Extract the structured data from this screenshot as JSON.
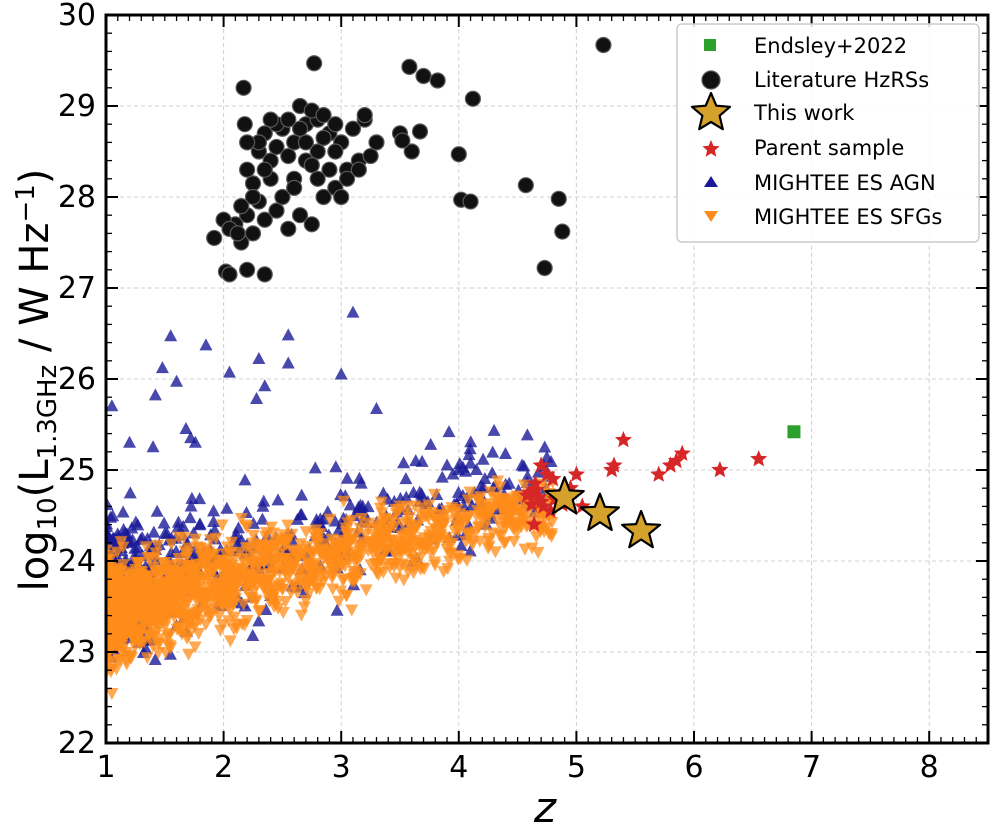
{
  "chart_data": {
    "type": "scatter",
    "xlabel": "z",
    "ylabel": {
      "prefix": "log",
      "base": "10",
      "open": "(L",
      "sub": "1.3GHz",
      "mid": " / W Hz",
      "sup": "−1",
      "close": ")"
    },
    "xlim": [
      1,
      8.5
    ],
    "ylim": [
      22,
      30
    ],
    "xticks": [
      "1",
      "2",
      "3",
      "4",
      "5",
      "6",
      "7",
      "8"
    ],
    "yticks": [
      "22",
      "23",
      "24",
      "25",
      "26",
      "27",
      "28",
      "29",
      "30"
    ],
    "grid": true,
    "legend_position": "top-right",
    "colors": {
      "endsley": "#2ca02c",
      "literature": "#111111",
      "this_work": "#d4a12a",
      "parent": "#d62728",
      "agn": "#1a1a99",
      "sfg": "#ff8c1a"
    },
    "series": [
      {
        "key": "endsley",
        "name": "Endsley+2022",
        "marker": "square",
        "points": [
          [
            6.85,
            25.42
          ]
        ]
      },
      {
        "key": "literature",
        "name": "Literature HzRSs",
        "marker": "circle",
        "points": [
          [
            2.17,
            29.2
          ],
          [
            2.77,
            29.47
          ],
          [
            3.58,
            29.43
          ],
          [
            3.7,
            29.33
          ],
          [
            3.82,
            29.28
          ],
          [
            5.23,
            29.67
          ],
          [
            4.12,
            29.08
          ],
          [
            2.5,
            28.75
          ],
          [
            2.6,
            28.6
          ],
          [
            2.7,
            28.8
          ],
          [
            2.8,
            28.85
          ],
          [
            2.9,
            28.7
          ],
          [
            3.0,
            28.6
          ],
          [
            3.1,
            28.75
          ],
          [
            3.2,
            28.85
          ],
          [
            2.3,
            28.5
          ],
          [
            2.4,
            28.4
          ],
          [
            2.2,
            28.3
          ],
          [
            2.35,
            28.7
          ],
          [
            2.45,
            28.8
          ],
          [
            2.55,
            28.85
          ],
          [
            2.65,
            29.0
          ],
          [
            2.75,
            28.95
          ],
          [
            2.85,
            28.9
          ],
          [
            2.95,
            28.5
          ],
          [
            3.05,
            28.3
          ],
          [
            3.15,
            28.4
          ],
          [
            3.25,
            28.45
          ],
          [
            2.25,
            28.15
          ],
          [
            2.3,
            27.95
          ],
          [
            2.2,
            27.8
          ],
          [
            2.1,
            27.7
          ],
          [
            2.0,
            27.75
          ],
          [
            1.92,
            27.55
          ],
          [
            2.05,
            27.65
          ],
          [
            2.15,
            27.5
          ],
          [
            2.25,
            27.6
          ],
          [
            2.35,
            27.75
          ],
          [
            2.45,
            27.85
          ],
          [
            2.55,
            27.65
          ],
          [
            2.65,
            27.8
          ],
          [
            2.75,
            27.7
          ],
          [
            2.85,
            28.0
          ],
          [
            2.95,
            28.1
          ],
          [
            3.05,
            28.2
          ],
          [
            3.15,
            28.3
          ],
          [
            2.02,
            27.18
          ],
          [
            2.05,
            27.15
          ],
          [
            2.2,
            27.2
          ],
          [
            2.35,
            27.15
          ],
          [
            2.6,
            28.2
          ],
          [
            2.7,
            28.4
          ],
          [
            2.8,
            28.5
          ],
          [
            2.9,
            28.3
          ],
          [
            3.2,
            28.9
          ],
          [
            3.3,
            28.6
          ],
          [
            3.5,
            28.7
          ],
          [
            3.6,
            28.5
          ],
          [
            3.67,
            28.72
          ],
          [
            4.0,
            28.47
          ],
          [
            4.02,
            27.97
          ],
          [
            4.1,
            27.95
          ],
          [
            4.57,
            28.13
          ],
          [
            4.85,
            27.98
          ],
          [
            4.88,
            27.62
          ],
          [
            4.73,
            27.22
          ],
          [
            2.4,
            28.2
          ],
          [
            2.5,
            28.0
          ],
          [
            2.3,
            28.6
          ],
          [
            2.6,
            28.1
          ],
          [
            2.7,
            28.6
          ],
          [
            2.8,
            28.2
          ],
          [
            3.0,
            28.0
          ],
          [
            2.2,
            28.6
          ],
          [
            2.25,
            28.0
          ],
          [
            2.15,
            27.9
          ],
          [
            2.35,
            28.3
          ],
          [
            2.45,
            28.55
          ],
          [
            2.55,
            28.45
          ],
          [
            2.65,
            28.75
          ],
          [
            2.75,
            28.35
          ],
          [
            2.85,
            28.65
          ],
          [
            2.12,
            27.6
          ],
          [
            3.52,
            28.62
          ],
          [
            2.95,
            28.8
          ],
          [
            2.4,
            28.85
          ],
          [
            2.18,
            28.8
          ]
        ]
      },
      {
        "key": "this_work",
        "name": "This work",
        "marker": "big-star",
        "points": [
          [
            4.9,
            24.7
          ],
          [
            5.2,
            24.52
          ],
          [
            5.55,
            24.33
          ]
        ]
      },
      {
        "key": "parent",
        "name": "Parent sample",
        "marker": "star",
        "points": [
          [
            4.6,
            24.75
          ],
          [
            4.65,
            24.85
          ],
          [
            4.7,
            25.05
          ],
          [
            4.75,
            24.95
          ],
          [
            4.8,
            24.9
          ],
          [
            4.62,
            24.62
          ],
          [
            4.68,
            24.7
          ],
          [
            4.72,
            24.6
          ],
          [
            4.64,
            24.4
          ],
          [
            4.78,
            24.55
          ],
          [
            4.85,
            24.7
          ],
          [
            4.95,
            24.8
          ],
          [
            5.0,
            24.95
          ],
          [
            5.05,
            24.6
          ],
          [
            5.3,
            25.0
          ],
          [
            5.32,
            25.05
          ],
          [
            5.4,
            25.33
          ],
          [
            5.7,
            24.95
          ],
          [
            5.8,
            25.05
          ],
          [
            5.85,
            25.1
          ],
          [
            5.9,
            25.18
          ],
          [
            6.22,
            25.0
          ],
          [
            6.55,
            25.12
          ],
          [
            4.7,
            24.65
          ],
          [
            4.66,
            24.78
          ],
          [
            4.88,
            24.62
          ],
          [
            4.58,
            24.72
          ],
          [
            4.82,
            24.68
          ]
        ]
      },
      {
        "key": "agn",
        "name": "MIGHTEE ES AGN",
        "marker": "triangle-up",
        "sample": {
          "count": 520,
          "seed": 7,
          "x_range": [
            1.0,
            4.8
          ],
          "base": 23.65,
          "slope": 0.32,
          "spread": 0.75,
          "lift": 0.2
        },
        "points": [
          [
            1.55,
            26.47
          ],
          [
            1.48,
            26.12
          ],
          [
            1.6,
            25.97
          ],
          [
            1.42,
            25.82
          ],
          [
            1.85,
            26.37
          ],
          [
            2.3,
            26.22
          ],
          [
            2.55,
            26.48
          ],
          [
            2.55,
            26.17
          ],
          [
            2.35,
            25.92
          ],
          [
            2.28,
            25.78
          ],
          [
            3.1,
            26.73
          ],
          [
            3.0,
            26.05
          ],
          [
            3.3,
            25.67
          ],
          [
            2.05,
            26.07
          ],
          [
            4.3,
            25.43
          ],
          [
            4.1,
            25.07
          ],
          [
            3.9,
            25.05
          ],
          [
            3.95,
            24.95
          ],
          [
            3.55,
            24.9
          ],
          [
            4.15,
            25.0
          ],
          [
            1.05,
            25.7
          ],
          [
            1.2,
            25.3
          ],
          [
            1.4,
            25.25
          ],
          [
            1.68,
            25.45
          ],
          [
            1.72,
            25.35
          ],
          [
            1.76,
            25.3
          ]
        ]
      },
      {
        "key": "sfg",
        "name": "MIGHTEE ES SFGs",
        "marker": "triangle-down",
        "sample": {
          "count": 1700,
          "seed": 11,
          "x_range": [
            1.0,
            4.8
          ],
          "base": 23.45,
          "slope": 0.3,
          "spread": 0.5,
          "lift": 0.0
        },
        "points": [
          [
            1.05,
            22.55
          ],
          [
            1.08,
            22.9
          ],
          [
            1.2,
            22.95
          ],
          [
            1.45,
            23.15
          ],
          [
            1.55,
            23.05
          ],
          [
            1.7,
            23.35
          ],
          [
            2.3,
            23.45
          ],
          [
            2.6,
            23.75
          ],
          [
            3.1,
            24.25
          ],
          [
            4.5,
            24.72
          ],
          [
            4.55,
            24.7
          ],
          [
            4.35,
            24.82
          ]
        ]
      }
    ]
  }
}
